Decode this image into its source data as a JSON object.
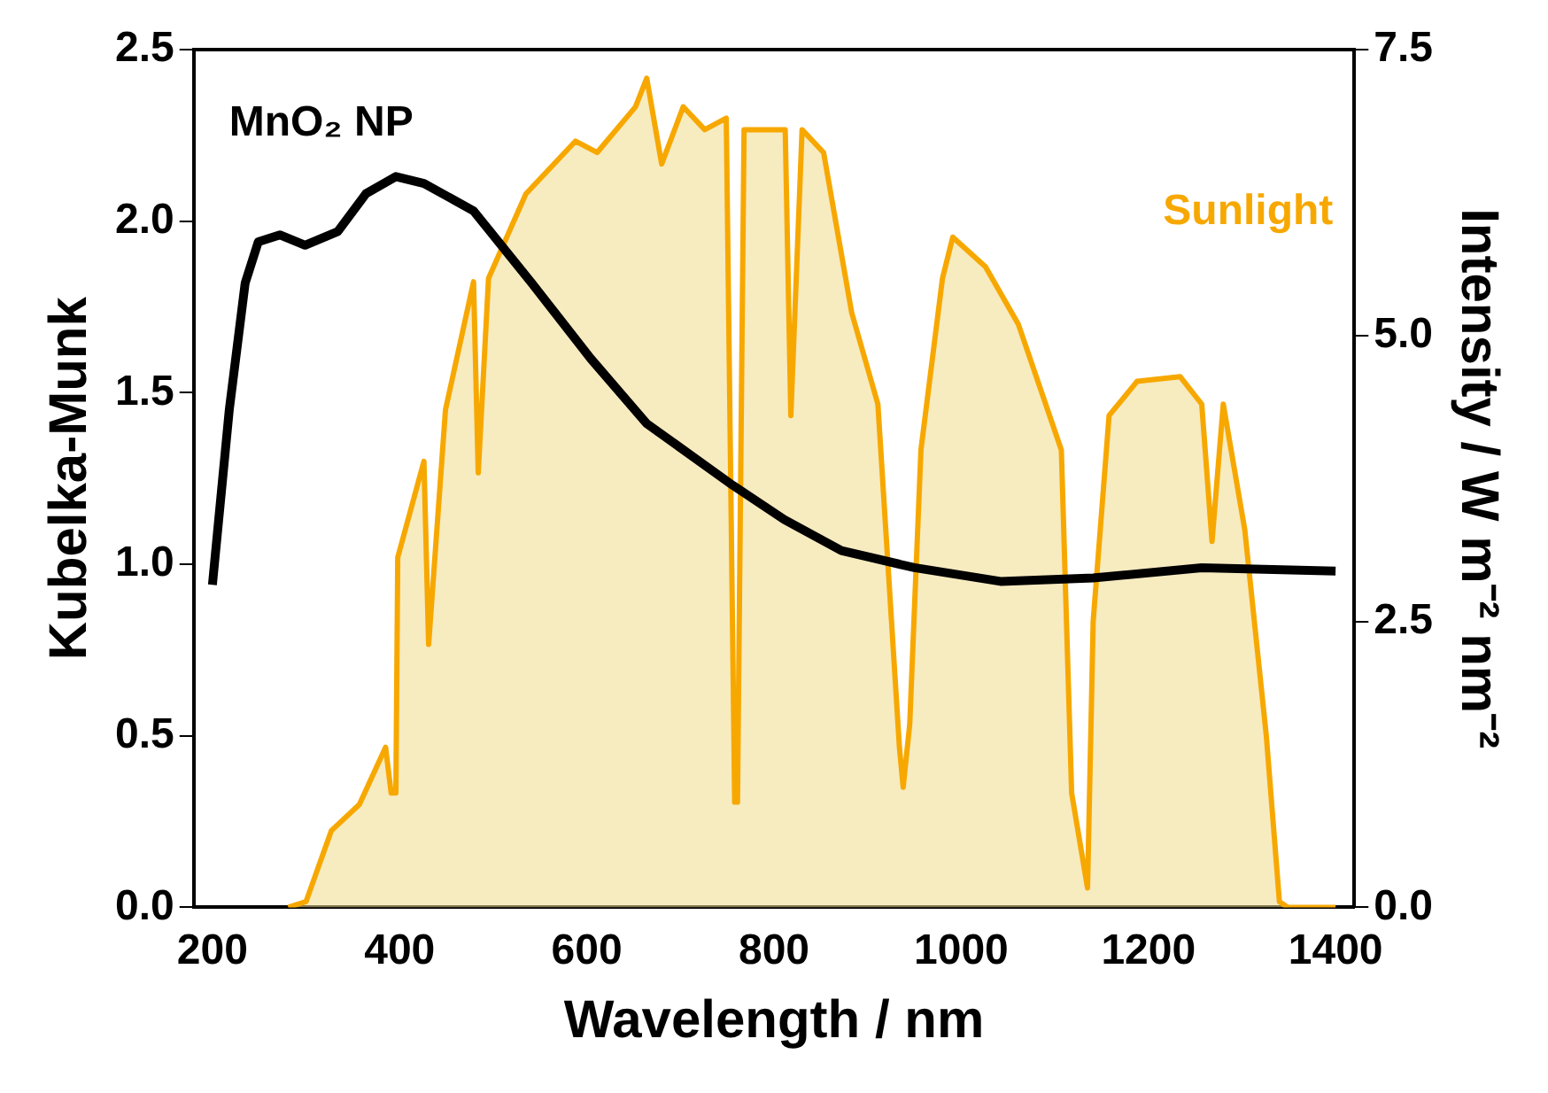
{
  "chart_data": {
    "type": "line",
    "xlabel": "Wavelength / nm",
    "ylabel": "Kubelka-Munk",
    "y2label": "Intensity / W m⁻² nm⁻²",
    "xlim": [
      180,
      1420
    ],
    "xticks": [
      200,
      400,
      600,
      800,
      1000,
      1200,
      1400
    ],
    "ylim": [
      0,
      2.5
    ],
    "yticks": [
      {
        "value": 0,
        "label": "0.0"
      },
      0.5,
      {
        "value": 1,
        "label": "1.0"
      },
      1.5,
      {
        "value": 2,
        "label": "2.0"
      },
      2.5
    ],
    "y2lim": [
      0,
      7.5
    ],
    "y2ticks": [
      {
        "value": 0,
        "label": "0.0"
      },
      {
        "value": 2.5,
        "label": "2.5"
      },
      {
        "value": 5,
        "label": "5.0"
      },
      {
        "value": 7.5,
        "label": "7.5"
      }
    ],
    "grid": false,
    "legend": false,
    "marker": "none",
    "line_style": "solid",
    "series": [
      {
        "name": "Sunlight",
        "type": "area",
        "axis": "y2",
        "color": "#f7a800",
        "x": [
          281,
          300,
          327,
          357,
          385,
          391,
          396,
          398,
          426,
          431,
          449,
          479,
          484,
          495,
          535,
          588,
          611,
          652,
          664,
          680,
          703,
          726,
          749,
          758,
          761,
          768,
          795,
          812,
          818,
          830,
          853,
          883,
          911,
          934,
          938,
          945,
          957,
          980,
          991,
          1026,
          1061,
          1107,
          1118,
          1135,
          1141,
          1158,
          1188,
          1234,
          1257,
          1268,
          1280,
          1303,
          1326,
          1340,
          1349,
          1400
        ],
        "values": [
          0,
          0.05,
          0.67,
          0.9,
          1.4,
          1.0,
          1.0,
          3.06,
          3.9,
          2.3,
          4.35,
          5.47,
          3.8,
          5.5,
          6.24,
          6.7,
          6.6,
          7.0,
          7.25,
          6.5,
          7.0,
          6.8,
          6.9,
          0.92,
          0.92,
          6.8,
          6.8,
          6.8,
          4.3,
          6.8,
          6.6,
          5.2,
          4.4,
          1.4,
          1.05,
          1.6,
          4.0,
          5.5,
          5.86,
          5.6,
          5.1,
          4.0,
          1.0,
          0.17,
          2.5,
          4.3,
          4.6,
          4.64,
          4.4,
          3.2,
          4.4,
          3.3,
          1.5,
          0.05,
          0,
          0
        ]
      },
      {
        "name": "MnO₂ NP",
        "type": "line",
        "axis": "y",
        "color": "#000000",
        "x": [
          200,
          218,
          235,
          249,
          272,
          299,
          334,
          364,
          396,
          426,
          479,
          541,
          604,
          664,
          756,
          811,
          872,
          950,
          1042,
          1141,
          1257,
          1400
        ],
        "values": [
          0.94,
          1.45,
          1.82,
          1.94,
          1.96,
          1.93,
          1.97,
          2.08,
          2.13,
          2.11,
          2.03,
          1.82,
          1.6,
          1.41,
          1.23,
          1.13,
          1.04,
          0.99,
          0.95,
          0.96,
          0.99,
          0.98
        ]
      }
    ]
  }
}
